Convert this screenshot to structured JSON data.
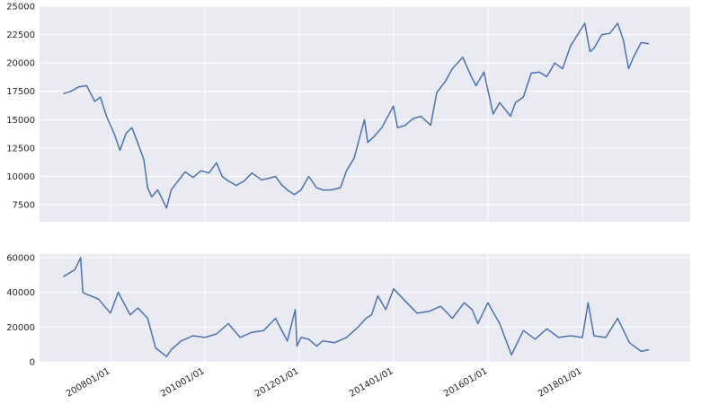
{
  "chart_data": [
    {
      "type": "line",
      "title": "",
      "xlabel": "",
      "ylabel": "",
      "grid": true,
      "x_type": "date",
      "xlim": [
        "2006-07-01",
        "2020-04-15"
      ],
      "ylim": [
        6000,
        25000
      ],
      "xticks": [],
      "yticks": [
        7500,
        10000,
        12500,
        15000,
        17500,
        20000,
        22500,
        25000
      ],
      "ytick_labels": [
        "7500",
        "10000",
        "12500",
        "15000",
        "17500",
        "20000",
        "22500",
        "25000"
      ],
      "series": [
        {
          "color": "#4C72B0",
          "x": [
            "2007-01-01",
            "2007-03-01",
            "2007-05-01",
            "2007-07-01",
            "2007-09-01",
            "2007-10-15",
            "2007-12-01",
            "2008-02-01",
            "2008-03-15",
            "2008-05-01",
            "2008-06-15",
            "2008-08-01",
            "2008-09-15",
            "2008-10-15",
            "2008-11-15",
            "2009-01-01",
            "2009-03-10",
            "2009-04-15",
            "2009-06-01",
            "2009-08-01",
            "2009-10-01",
            "2009-12-01",
            "2010-02-01",
            "2010-04-01",
            "2010-05-15",
            "2010-07-01",
            "2010-09-01",
            "2010-11-01",
            "2011-01-01",
            "2011-03-15",
            "2011-05-01",
            "2011-07-01",
            "2011-08-15",
            "2011-10-01",
            "2011-11-25",
            "2012-01-15",
            "2012-03-15",
            "2012-05-15",
            "2012-07-01",
            "2012-09-01",
            "2012-11-15",
            "2013-01-01",
            "2013-03-01",
            "2013-05-20",
            "2013-06-15",
            "2013-08-01",
            "2013-10-01",
            "2013-12-30",
            "2014-02-01",
            "2014-04-01",
            "2014-06-01",
            "2014-08-01",
            "2014-10-15",
            "2014-12-01",
            "2015-02-01",
            "2015-04-01",
            "2015-06-20",
            "2015-08-25",
            "2015-10-01",
            "2015-12-01",
            "2016-02-10",
            "2016-04-01",
            "2016-06-24",
            "2016-08-01",
            "2016-10-01",
            "2016-12-01",
            "2017-02-01",
            "2017-04-01",
            "2017-06-01",
            "2017-08-01",
            "2017-10-01",
            "2018-01-20",
            "2018-03-01",
            "2018-04-01",
            "2018-06-01",
            "2018-08-01",
            "2018-10-01",
            "2018-11-15",
            "2018-12-25",
            "2019-02-01",
            "2019-04-01",
            "2019-06-01"
          ],
          "values": [
            17300,
            17500,
            17900,
            18000,
            16600,
            17000,
            15300,
            13700,
            12300,
            13800,
            14300,
            12900,
            11500,
            9000,
            8200,
            8800,
            7200,
            8800,
            9500,
            10400,
            9900,
            10500,
            10300,
            11200,
            10000,
            9600,
            9200,
            9600,
            10300,
            9700,
            9800,
            10000,
            9300,
            8800,
            8400,
            8800,
            10000,
            9000,
            8800,
            8800,
            9000,
            10500,
            11600,
            15000,
            13000,
            13500,
            14300,
            16200,
            14300,
            14500,
            15100,
            15300,
            14500,
            17400,
            18300,
            19500,
            20500,
            18800,
            18000,
            19200,
            15500,
            16500,
            15300,
            16500,
            17000,
            19100,
            19200,
            18800,
            20000,
            19500,
            21500,
            23500,
            21000,
            21300,
            22500,
            22600,
            23500,
            22000,
            19500,
            20500,
            21800,
            21700
          ]
        }
      ]
    },
    {
      "type": "line",
      "title": "",
      "xlabel": "",
      "ylabel": "",
      "grid": true,
      "x_type": "date",
      "xlim": [
        "2006-07-01",
        "2020-04-15"
      ],
      "ylim": [
        0,
        62000
      ],
      "xticks": [
        "2008-01-01",
        "2010-01-01",
        "2012-01-01",
        "2014-01-01",
        "2016-01-01",
        "2018-01-01"
      ],
      "xtick_labels": [
        "200801/01",
        "201001/01",
        "201201/01",
        "201401/01",
        "201601/01",
        "201801/01"
      ],
      "yticks": [
        0,
        20000,
        40000,
        60000
      ],
      "ytick_labels": [
        "0",
        "20000",
        "40000",
        "60000"
      ],
      "series": [
        {
          "color": "#4C72B0",
          "x": [
            "2007-01-01",
            "2007-04-01",
            "2007-05-15",
            "2007-06-01",
            "2007-06-25",
            "2007-08-01",
            "2007-10-01",
            "2008-01-01",
            "2008-03-01",
            "2008-06-01",
            "2008-08-01",
            "2008-10-15",
            "2008-12-15",
            "2009-03-10",
            "2009-04-15",
            "2009-07-01",
            "2009-10-01",
            "2010-01-01",
            "2010-04-01",
            "2010-07-01",
            "2010-10-01",
            "2011-01-01",
            "2011-04-01",
            "2011-07-01",
            "2011-10-01",
            "2011-12-01",
            "2011-12-15",
            "2012-01-15",
            "2012-03-15",
            "2012-05-15",
            "2012-07-01",
            "2012-10-01",
            "2013-01-01",
            "2013-04-01",
            "2013-06-01",
            "2013-07-15",
            "2013-09-01",
            "2013-11-01",
            "2014-01-01",
            "2014-04-01",
            "2014-07-01",
            "2014-10-01",
            "2015-01-01",
            "2015-04-01",
            "2015-07-01",
            "2015-09-01",
            "2015-10-15",
            "2016-01-01",
            "2016-04-01",
            "2016-07-01",
            "2016-10-01",
            "2017-01-01",
            "2017-04-01",
            "2017-07-01",
            "2017-10-01",
            "2018-01-01",
            "2018-02-15",
            "2018-04-01",
            "2018-07-01",
            "2018-10-01",
            "2019-01-01",
            "2019-04-01",
            "2019-06-01"
          ],
          "values": [
            49000,
            53000,
            60000,
            40000,
            39000,
            38000,
            36000,
            28000,
            40000,
            27000,
            31000,
            25000,
            8000,
            3000,
            7000,
            12000,
            15000,
            14000,
            16000,
            22000,
            14000,
            17000,
            18000,
            25000,
            12000,
            30000,
            9000,
            14000,
            13000,
            9000,
            12000,
            11000,
            14000,
            20000,
            25000,
            27000,
            38000,
            30000,
            42000,
            35000,
            28000,
            29000,
            32000,
            25000,
            34000,
            30000,
            22000,
            34000,
            22000,
            4000,
            18000,
            13000,
            19000,
            14000,
            15000,
            14000,
            34000,
            15000,
            14000,
            25000,
            11000,
            6000,
            7000
          ]
        }
      ]
    }
  ]
}
